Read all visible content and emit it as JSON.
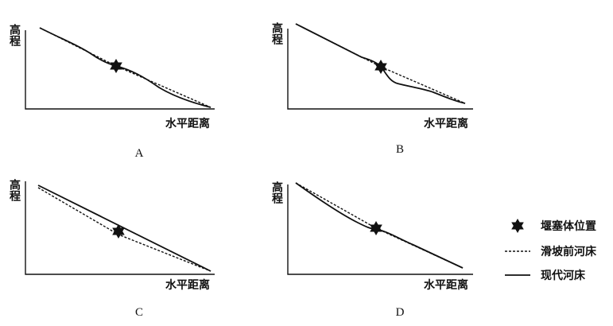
{
  "panels": [
    {
      "label": "A",
      "y_axis": "高程",
      "x_axis": "水平距离"
    },
    {
      "label": "B",
      "y_axis": "高程",
      "x_axis": "水平距离"
    },
    {
      "label": "C",
      "y_axis": "高程",
      "x_axis": "水平距离"
    },
    {
      "label": "D",
      "y_axis": "高程",
      "x_axis": "水平距离"
    }
  ],
  "legend": {
    "items": [
      "堰塞体位置",
      "滑坡前河床",
      "现代河床"
    ]
  }
}
